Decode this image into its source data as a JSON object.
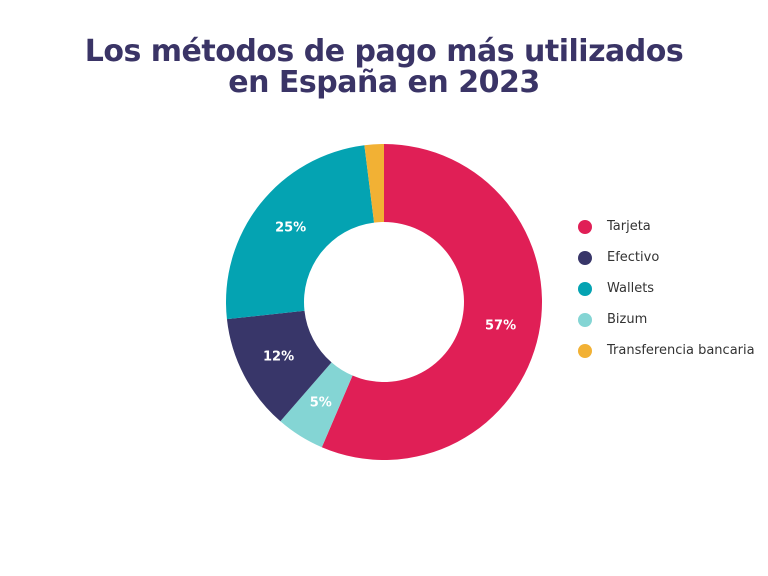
{
  "chart_data": {
    "type": "pie",
    "subtype": "donut",
    "title": "Los métodos de pago más utilizados en España en 2023",
    "categories": [
      "Tarjeta",
      "Efectivo",
      "Wallets",
      "Bizum",
      "Transferencia bancaria"
    ],
    "values": [
      57,
      12,
      25,
      5,
      2
    ],
    "value_labels": [
      "57%",
      "12%",
      "25%",
      "5%",
      ""
    ],
    "unit": "%",
    "colors": [
      "#e01f56",
      "#383669",
      "#04a3b2",
      "#84d5d4",
      "#f2b134"
    ],
    "legend_position": "right",
    "order_on_chart_clockwise_from_top": [
      "Tarjeta",
      "Bizum",
      "Efectivo",
      "Wallets",
      "Transferencia bancaria"
    ]
  }
}
